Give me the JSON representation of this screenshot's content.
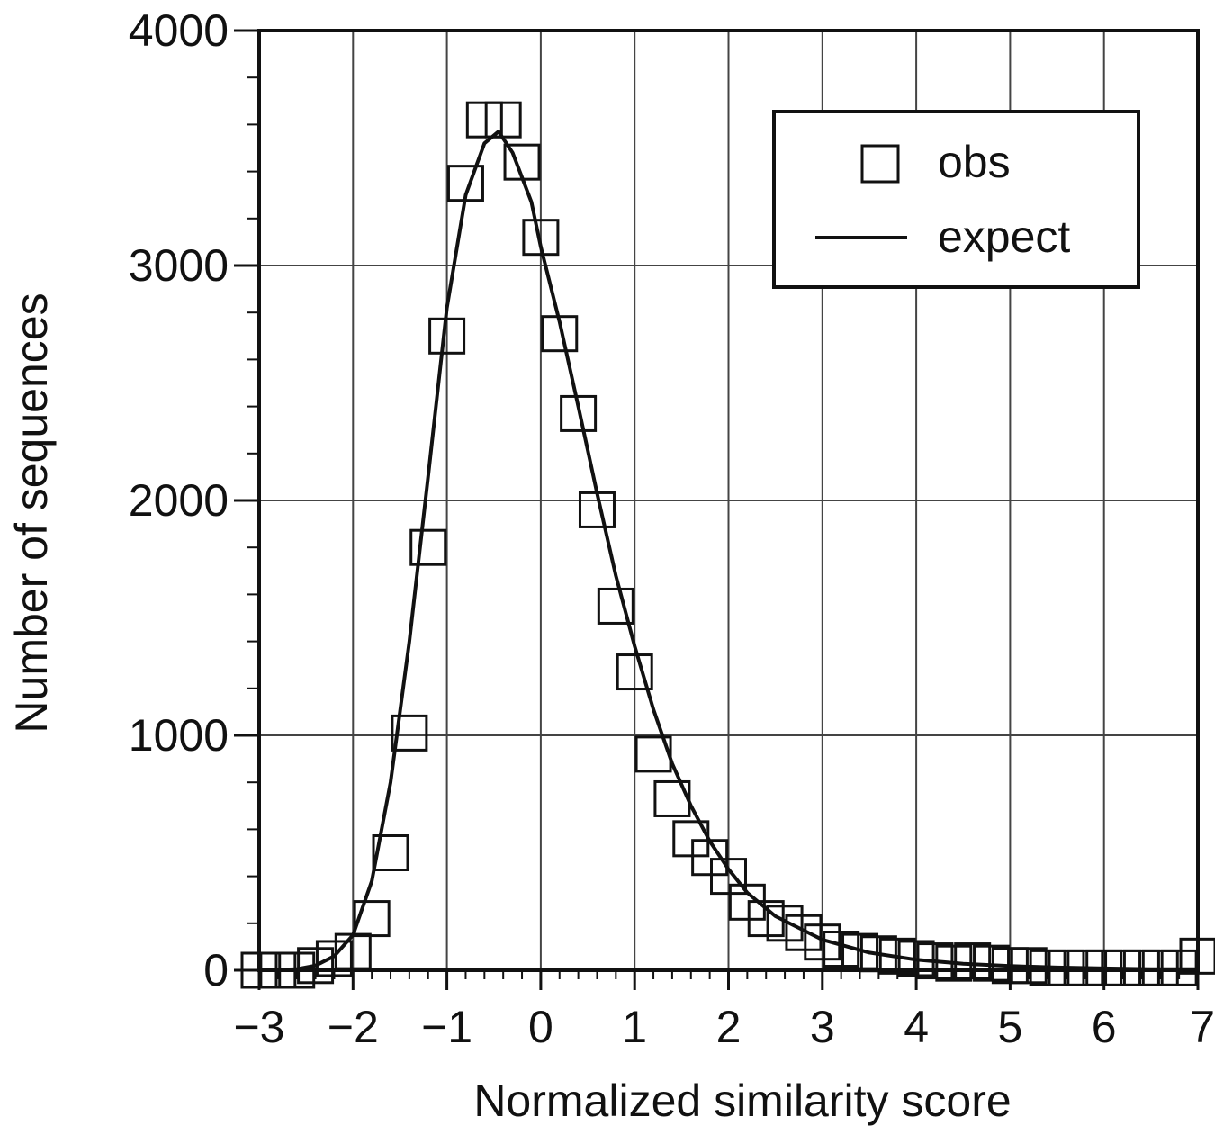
{
  "chart_data": {
    "type": "scatter",
    "title": "",
    "xlabel": "Normalized similarity score",
    "ylabel": "Number of sequences",
    "xlim": [
      -3,
      7
    ],
    "ylim": [
      0,
      4000
    ],
    "x_ticks": [
      -3,
      -2,
      -1,
      0,
      1,
      2,
      3,
      4,
      5,
      6,
      7
    ],
    "x_tick_labels": [
      "−3",
      "−2",
      "−1",
      "0",
      "1",
      "2",
      "3",
      "4",
      "5",
      "6",
      "7"
    ],
    "y_ticks": [
      0,
      1000,
      2000,
      3000,
      4000
    ],
    "y_tick_labels": [
      "0",
      "1000",
      "2000",
      "3000",
      "4000"
    ],
    "y_minor_step": 200,
    "x_minor_step": 0.2,
    "grid": true,
    "legend": {
      "position": "top-right",
      "entries": [
        "obs",
        "expect"
      ]
    },
    "series": [
      {
        "name": "obs",
        "kind": "markers",
        "marker": "open-square",
        "x": [
          -3.0,
          -2.8,
          -2.6,
          -2.4,
          -2.2,
          -2.0,
          -1.8,
          -1.6,
          -1.4,
          -1.2,
          -1.0,
          -0.8,
          -0.6,
          -0.4,
          -0.2,
          0.0,
          0.2,
          0.4,
          0.6,
          0.8,
          1.0,
          1.2,
          1.4,
          1.6,
          1.8,
          2.0,
          2.2,
          2.4,
          2.6,
          2.8,
          3.0,
          3.2,
          3.4,
          3.6,
          3.8,
          4.0,
          4.2,
          4.4,
          4.6,
          4.8,
          5.0,
          5.2,
          5.4,
          5.6,
          5.8,
          6.0,
          6.2,
          6.4,
          6.6,
          6.8,
          7.0
        ],
        "y": [
          0,
          0,
          0,
          20,
          50,
          80,
          220,
          500,
          1010,
          1800,
          2700,
          3350,
          3620,
          3620,
          3440,
          3120,
          2710,
          2370,
          1960,
          1550,
          1270,
          920,
          730,
          560,
          480,
          400,
          290,
          220,
          200,
          160,
          120,
          90,
          80,
          70,
          60,
          50,
          40,
          30,
          40,
          30,
          20,
          20,
          10,
          10,
          10,
          10,
          10,
          10,
          10,
          10,
          60
        ]
      },
      {
        "name": "expect",
        "kind": "line",
        "x": [
          -3.0,
          -2.6,
          -2.4,
          -2.2,
          -2.0,
          -1.8,
          -1.6,
          -1.4,
          -1.2,
          -1.0,
          -0.8,
          -0.6,
          -0.45,
          -0.3,
          -0.1,
          0.0,
          0.2,
          0.4,
          0.6,
          0.8,
          1.0,
          1.2,
          1.4,
          1.6,
          1.8,
          2.0,
          2.2,
          2.5,
          3.0,
          3.5,
          4.0,
          4.5,
          5.0,
          5.5,
          6.0,
          6.5,
          7.0
        ],
        "y": [
          0,
          5,
          20,
          60,
          150,
          380,
          800,
          1400,
          2100,
          2820,
          3300,
          3520,
          3570,
          3480,
          3270,
          3080,
          2760,
          2400,
          2030,
          1680,
          1380,
          1110,
          880,
          700,
          550,
          430,
          330,
          230,
          130,
          75,
          45,
          28,
          18,
          12,
          8,
          5,
          5
        ]
      }
    ]
  }
}
